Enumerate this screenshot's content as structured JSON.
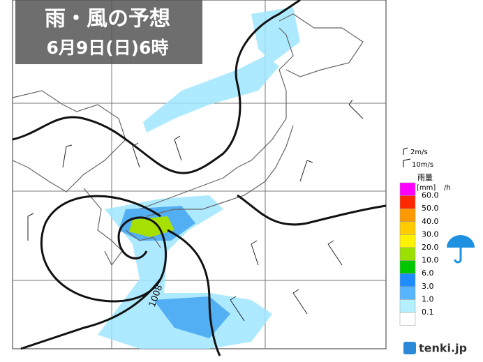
{
  "header": {
    "title": "雨・風の予想",
    "subtitle": "6月9日(日)6時"
  },
  "map": {
    "isobar_label": "1008"
  },
  "wind_legend": {
    "small": "2m/s",
    "large": "10m/s"
  },
  "rain_legend": {
    "title": "雨量",
    "unit": "[mm]",
    "per": "/h",
    "colors": [
      "#ff00ff",
      "#ff2800",
      "#ff9900",
      "#ffcc00",
      "#fff200",
      "#9be000",
      "#00c800",
      "#1e8cff",
      "#57b4ff",
      "#b4f0ff",
      "#ffffff"
    ],
    "levels": [
      "60.0",
      "50.0",
      "40.0",
      "30.0",
      "20.0",
      "10.0",
      "6.0",
      "3.0",
      "1.0",
      "0.1"
    ]
  },
  "brand": {
    "logo": "tenki.jp"
  }
}
